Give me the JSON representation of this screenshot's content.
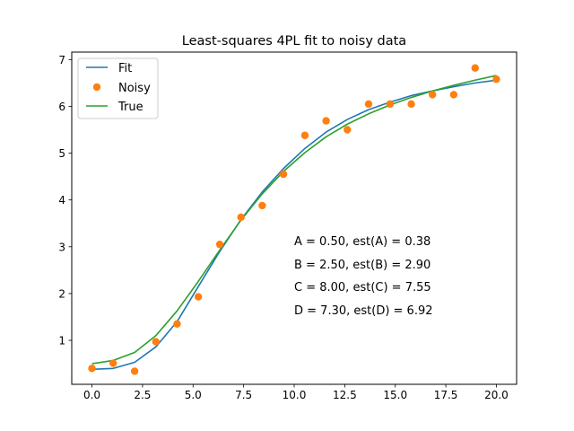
{
  "colors": {
    "fit": "#1f77b4",
    "noisy": "#ff7f0e",
    "true": "#2ca02c",
    "axis": "#000000",
    "background": "#ffffff"
  },
  "chart_data": {
    "type": "line",
    "title": "Least-squares 4PL fit to noisy data",
    "xlabel": "",
    "ylabel": "",
    "xlim": [
      -1.0,
      21.0
    ],
    "ylim": [
      0.06,
      7.16
    ],
    "grid": false,
    "legend_position": "top-left",
    "xticks": [
      0,
      2.5,
      5,
      7.5,
      10,
      12.5,
      15,
      17.5,
      20
    ],
    "xtick_labels": [
      "0.0",
      "2.5",
      "5.0",
      "7.5",
      "10.0",
      "12.5",
      "15.0",
      "17.5",
      "20.0"
    ],
    "yticks": [
      1,
      2,
      3,
      4,
      5,
      6,
      7
    ],
    "ytick_labels": [
      "1",
      "2",
      "3",
      "4",
      "5",
      "6",
      "7"
    ],
    "x": [
      0.0,
      1.05,
      2.11,
      3.16,
      4.21,
      5.26,
      6.32,
      7.37,
      8.42,
      9.47,
      10.53,
      11.58,
      12.63,
      13.68,
      14.74,
      15.79,
      16.84,
      17.89,
      18.95,
      20.0
    ],
    "series": [
      {
        "name": "Fit",
        "style": "line",
        "color": "#1f77b4",
        "values": [
          0.38,
          0.4,
          0.53,
          0.86,
          1.4,
          2.15,
          2.9,
          3.58,
          4.17,
          4.67,
          5.1,
          5.45,
          5.72,
          5.93,
          6.09,
          6.23,
          6.33,
          6.42,
          6.5,
          6.56
        ]
      },
      {
        "name": "Noisy",
        "style": "markers",
        "color": "#ff7f0e",
        "values": [
          0.4,
          0.51,
          0.34,
          0.97,
          1.35,
          1.93,
          3.05,
          3.63,
          3.88,
          4.55,
          5.38,
          5.69,
          5.5,
          6.05,
          6.05,
          6.05,
          6.25,
          6.25,
          6.82,
          6.58
        ]
      },
      {
        "name": "True",
        "style": "line",
        "color": "#2ca02c",
        "values": [
          0.5,
          0.57,
          0.74,
          1.1,
          1.63,
          2.26,
          2.93,
          3.57,
          4.13,
          4.61,
          5.01,
          5.35,
          5.62,
          5.84,
          6.03,
          6.19,
          6.33,
          6.45,
          6.56,
          6.66
        ]
      }
    ],
    "annotations": [
      "A = 0.50, est(A) = 0.38",
      "B = 2.50, est(B) = 2.90",
      "C = 8.00, est(C) = 7.55",
      "D = 7.30, est(D) = 6.92"
    ]
  }
}
